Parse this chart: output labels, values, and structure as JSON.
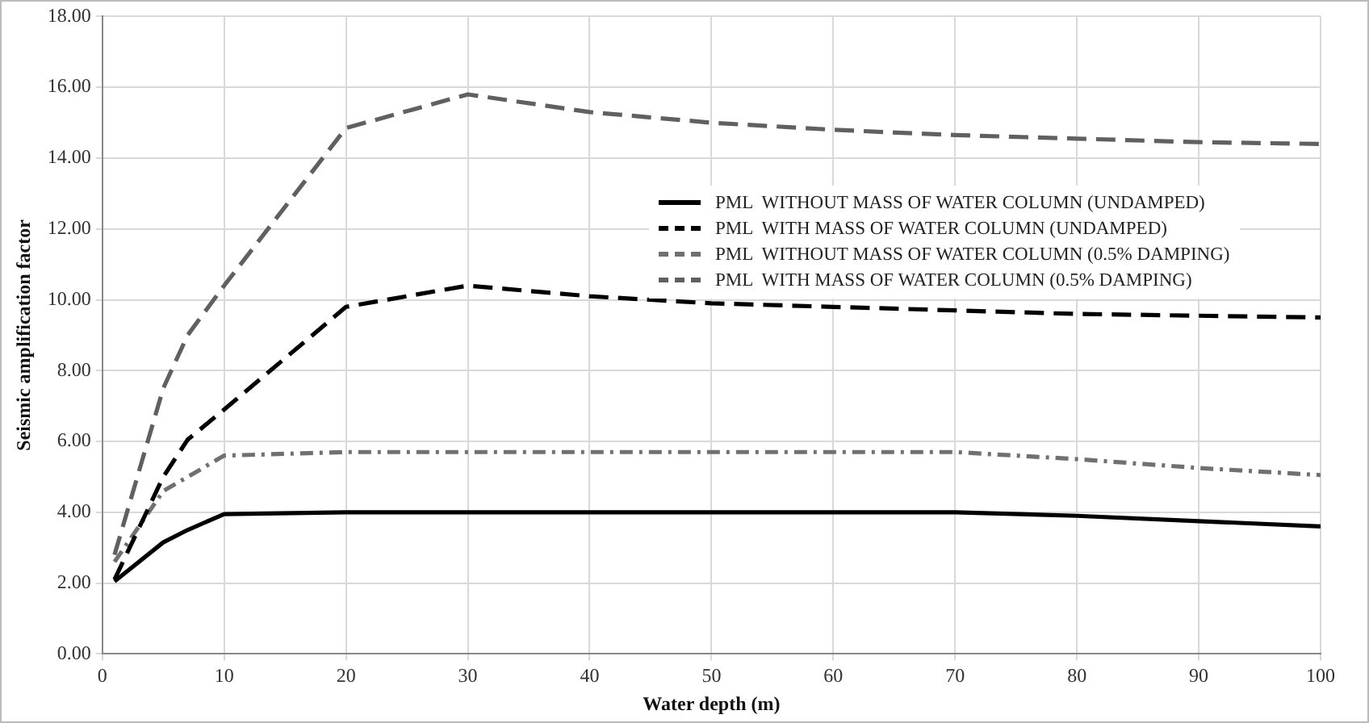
{
  "chart_data": {
    "type": "line",
    "xlabel": "Water depth (m)",
    "ylabel": "Seismic amplification factor",
    "xlim": [
      0,
      100
    ],
    "xticks": [
      0,
      10,
      20,
      30,
      40,
      50,
      60,
      70,
      80,
      90,
      100
    ],
    "ylim": [
      0,
      18
    ],
    "yticks": [
      {
        "value": 0,
        "label": "0.00"
      },
      {
        "value": 2,
        "label": "2.00"
      },
      {
        "value": 4,
        "label": "4.00"
      },
      {
        "value": 6,
        "label": "6.00"
      },
      {
        "value": 8,
        "label": "8.00"
      },
      {
        "value": 10,
        "label": "10.00"
      },
      {
        "value": 12,
        "label": "12.00"
      },
      {
        "value": 14,
        "label": "14.00"
      },
      {
        "value": 16,
        "label": "16.00"
      },
      {
        "value": 18,
        "label": "18.00"
      }
    ],
    "x": [
      1,
      5,
      7,
      10,
      20,
      30,
      40,
      50,
      60,
      70,
      80,
      90,
      100
    ],
    "grid": true,
    "legend": "right",
    "marker": "none",
    "series": [
      {
        "name": "PML  WITHOUT MASS OF WATER COLUMN (UNDAMPED)",
        "color": "#000000",
        "line_style": "solid",
        "values": [
          2.05,
          3.15,
          3.5,
          3.95,
          4.0,
          4.0,
          4.0,
          4.0,
          4.0,
          4.0,
          3.9,
          3.75,
          3.6
        ]
      },
      {
        "name": "PML  WITH MASS OF WATER COLUMN (UNDAMPED)",
        "color": "#000000",
        "line_style": "dashed",
        "values": [
          2.1,
          5.0,
          6.05,
          6.9,
          9.8,
          10.4,
          10.1,
          9.9,
          9.8,
          9.7,
          9.6,
          9.55,
          9.5
        ]
      },
      {
        "name": "PML  WITHOUT MASS OF WATER COLUMN (0.5% DAMPING)",
        "color": "#707070",
        "line_style": "dotted",
        "values": [
          2.6,
          4.6,
          5.0,
          5.6,
          5.7,
          5.7,
          5.7,
          5.7,
          5.7,
          5.7,
          5.5,
          5.25,
          5.05
        ]
      },
      {
        "name": "PML  WITH MASS OF WATER COLUMN (0.5% DAMPING)",
        "color": "#606060",
        "line_style": "dashed",
        "values": [
          2.8,
          7.5,
          9.0,
          10.4,
          14.85,
          15.8,
          15.3,
          15.0,
          14.8,
          14.65,
          14.55,
          14.45,
          14.4
        ]
      }
    ]
  }
}
